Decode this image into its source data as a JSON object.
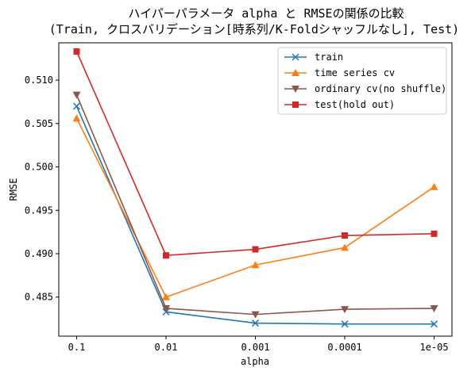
{
  "chart_data": {
    "type": "line",
    "title_line1": "ハイパーパラメータ alpha と RMSEの関係の比較",
    "title_line2": "(Train, クロスバリデーション[時系列/K-Foldシャッフルなし], Test)",
    "xlabel": "alpha",
    "ylabel": "RMSE",
    "categories": [
      "0.1",
      "0.01",
      "0.001",
      "0.0001",
      "1e-05"
    ],
    "ylim": [
      0.4805,
      0.5143
    ],
    "yticks": [
      0.485,
      0.49,
      0.495,
      0.5,
      0.505,
      0.51
    ],
    "ytick_labels": [
      "0.485",
      "0.490",
      "0.495",
      "0.500",
      "0.505",
      "0.510"
    ],
    "legend_position": "top-right",
    "grid": false,
    "series": [
      {
        "name": "train",
        "color": "#1f77b4",
        "marker": "x",
        "values": [
          0.507,
          0.4833,
          0.482,
          0.4819,
          0.4819
        ]
      },
      {
        "name": "time series cv",
        "color": "#ff7f0e",
        "marker": "triangle-up",
        "values": [
          0.5056,
          0.485,
          0.4887,
          0.4907,
          0.4977
        ]
      },
      {
        "name": "ordinary cv(no shuffle)",
        "color": "#8c564b",
        "marker": "triangle-down",
        "values": [
          0.5083,
          0.4837,
          0.483,
          0.4836,
          0.4837
        ]
      },
      {
        "name": "test(hold out)",
        "color": "#d62728",
        "marker": "square",
        "values": [
          0.5133,
          0.4898,
          0.4905,
          0.4921,
          0.4923
        ]
      }
    ]
  }
}
